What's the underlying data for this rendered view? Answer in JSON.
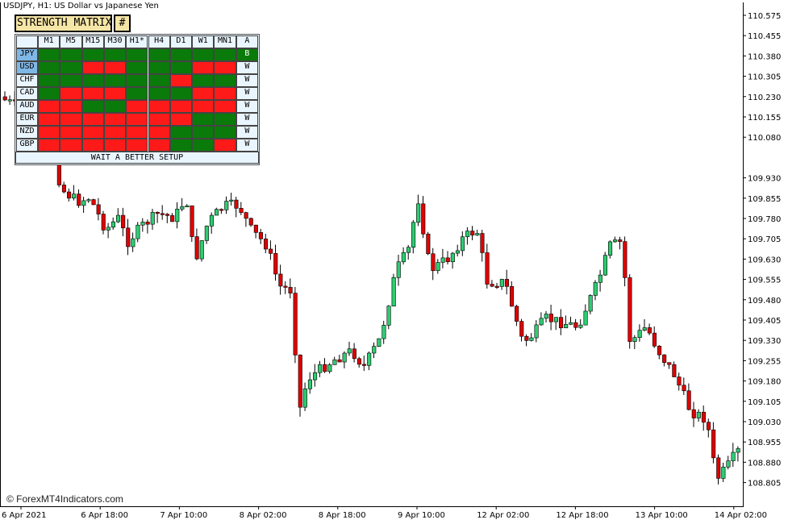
{
  "chart": {
    "title": "USDJPY, H1:  US Dollar vs Japanese Yen",
    "watermark": "© ForexMT4Indicators.com",
    "price_ticks": [
      "110.575",
      "110.455",
      "110.380",
      "110.305",
      "110.230",
      "110.155",
      "110.080",
      "109.930",
      "109.855",
      "109.780",
      "109.705",
      "109.630",
      "109.555",
      "109.480",
      "109.405",
      "109.330",
      "109.255",
      "109.180",
      "109.105",
      "109.030",
      "108.955",
      "108.880",
      "108.805"
    ],
    "time_ticks": [
      "6 Apr 2021",
      "6 Apr 18:00",
      "7 Apr 10:00",
      "8 Apr 02:00",
      "8 Apr 18:00",
      "9 Apr 10:00",
      "12 Apr 02:00",
      "12 Apr 18:00",
      "13 Apr 10:00",
      "14 Apr 02:00"
    ],
    "colors": {
      "bull": "#2ecc71",
      "bear": "#e00000",
      "wick": "#000000",
      "axis": "#000000"
    }
  },
  "matrix": {
    "title": "STRENGTH MATRIX",
    "hash": "#",
    "headers": [
      "M1",
      "M5",
      "M15",
      "M30",
      "H1*",
      "H4",
      "D1",
      "W1",
      "MN1",
      "A"
    ],
    "rows": [
      {
        "cur": "JPY",
        "cells": [
          "g",
          "g",
          "g",
          "g",
          "g",
          "g",
          "g",
          "g",
          "g"
        ],
        "action": "B"
      },
      {
        "cur": "USD",
        "cells": [
          "g",
          "g",
          "r",
          "r",
          "g",
          "g",
          "g",
          "r",
          "r"
        ],
        "action": "W"
      },
      {
        "cur": "CHF",
        "cells": [
          "g",
          "g",
          "g",
          "g",
          "g",
          "g",
          "r",
          "g",
          "g"
        ],
        "action": "W"
      },
      {
        "cur": "CAD",
        "cells": [
          "g",
          "r",
          "r",
          "r",
          "g",
          "g",
          "g",
          "r",
          "r"
        ],
        "action": "W"
      },
      {
        "cur": "AUD",
        "cells": [
          "r",
          "r",
          "g",
          "g",
          "r",
          "r",
          "r",
          "r",
          "r"
        ],
        "action": "W"
      },
      {
        "cur": "EUR",
        "cells": [
          "r",
          "r",
          "r",
          "r",
          "r",
          "r",
          "r",
          "g",
          "g"
        ],
        "action": "W"
      },
      {
        "cur": "NZD",
        "cells": [
          "r",
          "r",
          "r",
          "r",
          "r",
          "r",
          "g",
          "g",
          "g"
        ],
        "action": "W"
      },
      {
        "cur": "GBP",
        "cells": [
          "r",
          "r",
          "r",
          "r",
          "r",
          "r",
          "g",
          "g",
          "r"
        ],
        "action": "W"
      }
    ],
    "highlighted": [
      "JPY",
      "USD"
    ],
    "status": "WAIT A BETTER SETUP"
  }
}
